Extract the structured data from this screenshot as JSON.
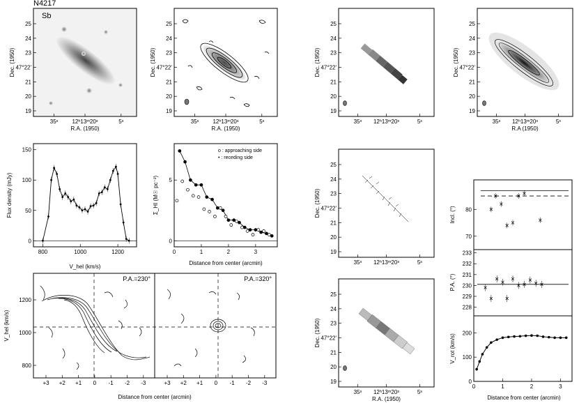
{
  "galaxy": {
    "name": "N4217",
    "type": "Sb"
  },
  "labels": {
    "ra": "R.A. (1950)",
    "ra_alt": "R.A (1950)",
    "dec": "Dec. (1950)",
    "flux_density": "Flux density (mJy)",
    "vhel_axis": "V_hel (km/s)",
    "sigma_hi": "Σ_HI (M☉ pc⁻²)",
    "distance": "Distance from center (arcmin)",
    "approaching": "o : approaching side",
    "receding": "• : receding side",
    "incl": "Incl. (°)",
    "pa": "P.A. (°)",
    "vrot": "V_rot (km/s)",
    "pv1": "P.A.=230°",
    "pv2": "P.A.=320°"
  },
  "ticks": {
    "dec": [
      "25",
      "24",
      "23",
      "47°22'",
      "21",
      "20",
      "19"
    ],
    "ra": [
      "35ˢ",
      "12ʰ13ᵐ20ˢ",
      "5ˢ"
    ]
  },
  "chart_data": [
    {
      "type": "line",
      "id": "hi-profile",
      "xlabel": "V_hel (km/s)",
      "ylabel": "Flux density (mJy)",
      "xlim": [
        750,
        1300
      ],
      "ylim": [
        -10,
        160
      ],
      "x": [
        800,
        830,
        845,
        860,
        875,
        890,
        905,
        920,
        935,
        950,
        965,
        980,
        995,
        1010,
        1025,
        1040,
        1055,
        1070,
        1085,
        1100,
        1115,
        1130,
        1145,
        1160,
        1175,
        1190,
        1200,
        1215,
        1230,
        1245,
        1260
      ],
      "y": [
        0,
        40,
        100,
        120,
        110,
        85,
        72,
        78,
        72,
        65,
        68,
        58,
        55,
        50,
        52,
        48,
        57,
        58,
        62,
        78,
        80,
        88,
        85,
        100,
        115,
        122,
        110,
        60,
        30,
        3,
        0
      ],
      "xticks": [
        800,
        1000,
        1200
      ],
      "yticks": [
        0,
        50,
        100,
        150
      ]
    },
    {
      "type": "scatter",
      "id": "surface-density",
      "xlabel": "Distance from center (arcmin)",
      "ylabel": "Σ_HI (M☉ pc⁻²)",
      "xlim": [
        0,
        3.8
      ],
      "ylim": [
        -0.5,
        8
      ],
      "series": [
        {
          "name": "approaching side",
          "marker": "open",
          "x": [
            0.1,
            0.3,
            0.5,
            0.7,
            0.9,
            1.1,
            1.3,
            1.5,
            1.7,
            1.9,
            2.1,
            2.3,
            2.5,
            2.7,
            2.9,
            3.1,
            3.3,
            3.5
          ],
          "y": [
            3.3,
            4.9,
            4.2,
            3.7,
            3.6,
            2.6,
            2.4,
            2.0,
            2.7,
            2.0,
            1.3,
            1.6,
            1.1,
            0.8,
            0.5,
            0.9,
            0.8,
            0.5
          ]
        },
        {
          "name": "receding side",
          "marker": "filled",
          "x": [
            0.2,
            0.4,
            0.6,
            0.8,
            1.0,
            1.2,
            1.4,
            1.6,
            1.8,
            2.0,
            2.2,
            2.4,
            2.6,
            2.8,
            3.0,
            3.2,
            3.4,
            3.6
          ],
          "y": [
            7.4,
            6.5,
            5.0,
            4.6,
            4.6,
            3.6,
            3.4,
            2.7,
            2.5,
            1.7,
            1.7,
            1.5,
            1.1,
            0.9,
            0.9,
            0.7,
            0.6,
            0.4
          ]
        }
      ],
      "xticks": [
        0,
        1,
        2,
        3
      ],
      "yticks": [
        0,
        5
      ]
    },
    {
      "type": "scatter",
      "id": "inclination",
      "ylabel": "Incl. (°)",
      "xlim": [
        0,
        3.4
      ],
      "ylim": [
        65,
        91
      ],
      "x": [
        0.6,
        0.75,
        0.95,
        1.15,
        1.35,
        1.55,
        1.75,
        2.3
      ],
      "y": [
        80,
        85,
        82,
        74,
        75,
        85,
        86,
        76
      ],
      "reference_lines": [
        87,
        85
      ],
      "yticks": [
        70,
        80
      ]
    },
    {
      "type": "scatter",
      "id": "position-angle",
      "ylabel": "P.A. (°)",
      "xlim": [
        0,
        3.4
      ],
      "ylim": [
        227.2,
        233.3
      ],
      "x": [
        0.4,
        0.6,
        0.8,
        1.0,
        1.15,
        1.35,
        1.55,
        1.75,
        1.95,
        2.15,
        2.35
      ],
      "y": [
        229.8,
        228.8,
        230.6,
        230.3,
        228.8,
        230.6,
        230.0,
        230.1,
        230.5,
        230.2,
        230.1
      ],
      "reference_lines": [
        230.1
      ],
      "yticks": [
        228,
        229,
        230,
        231,
        232,
        233
      ]
    },
    {
      "type": "line",
      "id": "rotation-curve",
      "xlabel": "Distance from center (arcmin)",
      "ylabel": "V_rot (km/s)",
      "xlim": [
        0,
        3.4
      ],
      "ylim": [
        0,
        270
      ],
      "x": [
        0.1,
        0.2,
        0.3,
        0.45,
        0.6,
        0.8,
        1.0,
        1.2,
        1.4,
        1.6,
        1.8,
        2.0,
        2.2,
        2.4,
        2.6,
        2.8,
        3.0,
        3.2
      ],
      "y": [
        50,
        82,
        112,
        140,
        160,
        172,
        180,
        183,
        185,
        186,
        188,
        189,
        188,
        184,
        182,
        180,
        180,
        180
      ],
      "yticks": [
        0,
        100,
        200
      ],
      "xticks": [
        0,
        1,
        2,
        3
      ]
    }
  ]
}
